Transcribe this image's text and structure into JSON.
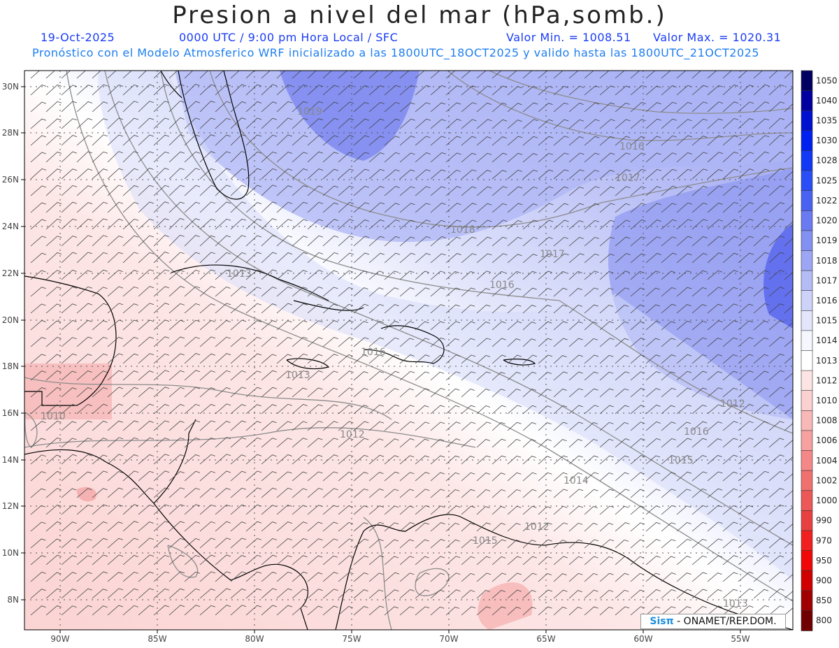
{
  "header": {
    "title": "Presion a nivel del mar (hPa,somb.)",
    "date": "19-Oct-2025",
    "time": "0000 UTC / 9:00 pm Hora Local / SFC",
    "min_label": "Valor Min. = 1008.51",
    "max_label": "Valor Max. = 1020.31",
    "forecast_line": "Pronóstico con el Modelo Atmosferico WRF inicializado a las 1800UTC_18OCT2025 y valido hasta las  1800UTC_21OCT2025"
  },
  "map": {
    "lat_labels": [
      "30N",
      "28N",
      "26N",
      "24N",
      "22N",
      "20N",
      "18N",
      "16N",
      "14N",
      "12N",
      "10N",
      "8N"
    ],
    "lon_labels": [
      "90W",
      "85W",
      "80W",
      "75W",
      "70W",
      "65W",
      "60W",
      "55W"
    ],
    "isobar_labels": [
      "1019",
      "1016",
      "1017",
      "1018",
      "1017",
      "1016",
      "1016",
      "1015",
      "1013",
      "1013",
      "1010",
      "1012",
      "1014",
      "1015",
      "1016",
      "1012",
      "1013",
      "1012",
      "1013",
      "1017"
    ]
  },
  "colorbar": {
    "levels": [
      "1050",
      "1040",
      "1035",
      "1030",
      "1028",
      "1025",
      "1022",
      "1020",
      "1019",
      "1018",
      "1017",
      "1016",
      "1015",
      "1014",
      "1013",
      "1012",
      "1010",
      "1008",
      "1006",
      "1004",
      "1002",
      "1000",
      "990",
      "970",
      "950",
      "900",
      "850",
      "800"
    ],
    "colors": [
      "#000060",
      "#0000a0",
      "#0010d0",
      "#0020f0",
      "#1038f5",
      "#2a4ef5",
      "#4a62f2",
      "#6a7af0",
      "#8290f2",
      "#9ca6f4",
      "#b4bcf6",
      "#cdd2f8",
      "#e3e6fb",
      "#f6f7fe",
      "#ffffff",
      "#fde4e4",
      "#fbd0d0",
      "#f8b8b8",
      "#f6a0a0",
      "#f48888",
      "#f07070",
      "#ec5858",
      "#e84040",
      "#f02020",
      "#f00808",
      "#d00000",
      "#a00000",
      "#700000"
    ]
  },
  "watermark": {
    "logo": "Sisπ",
    "text": " - ONAMET/REP.DOM."
  }
}
